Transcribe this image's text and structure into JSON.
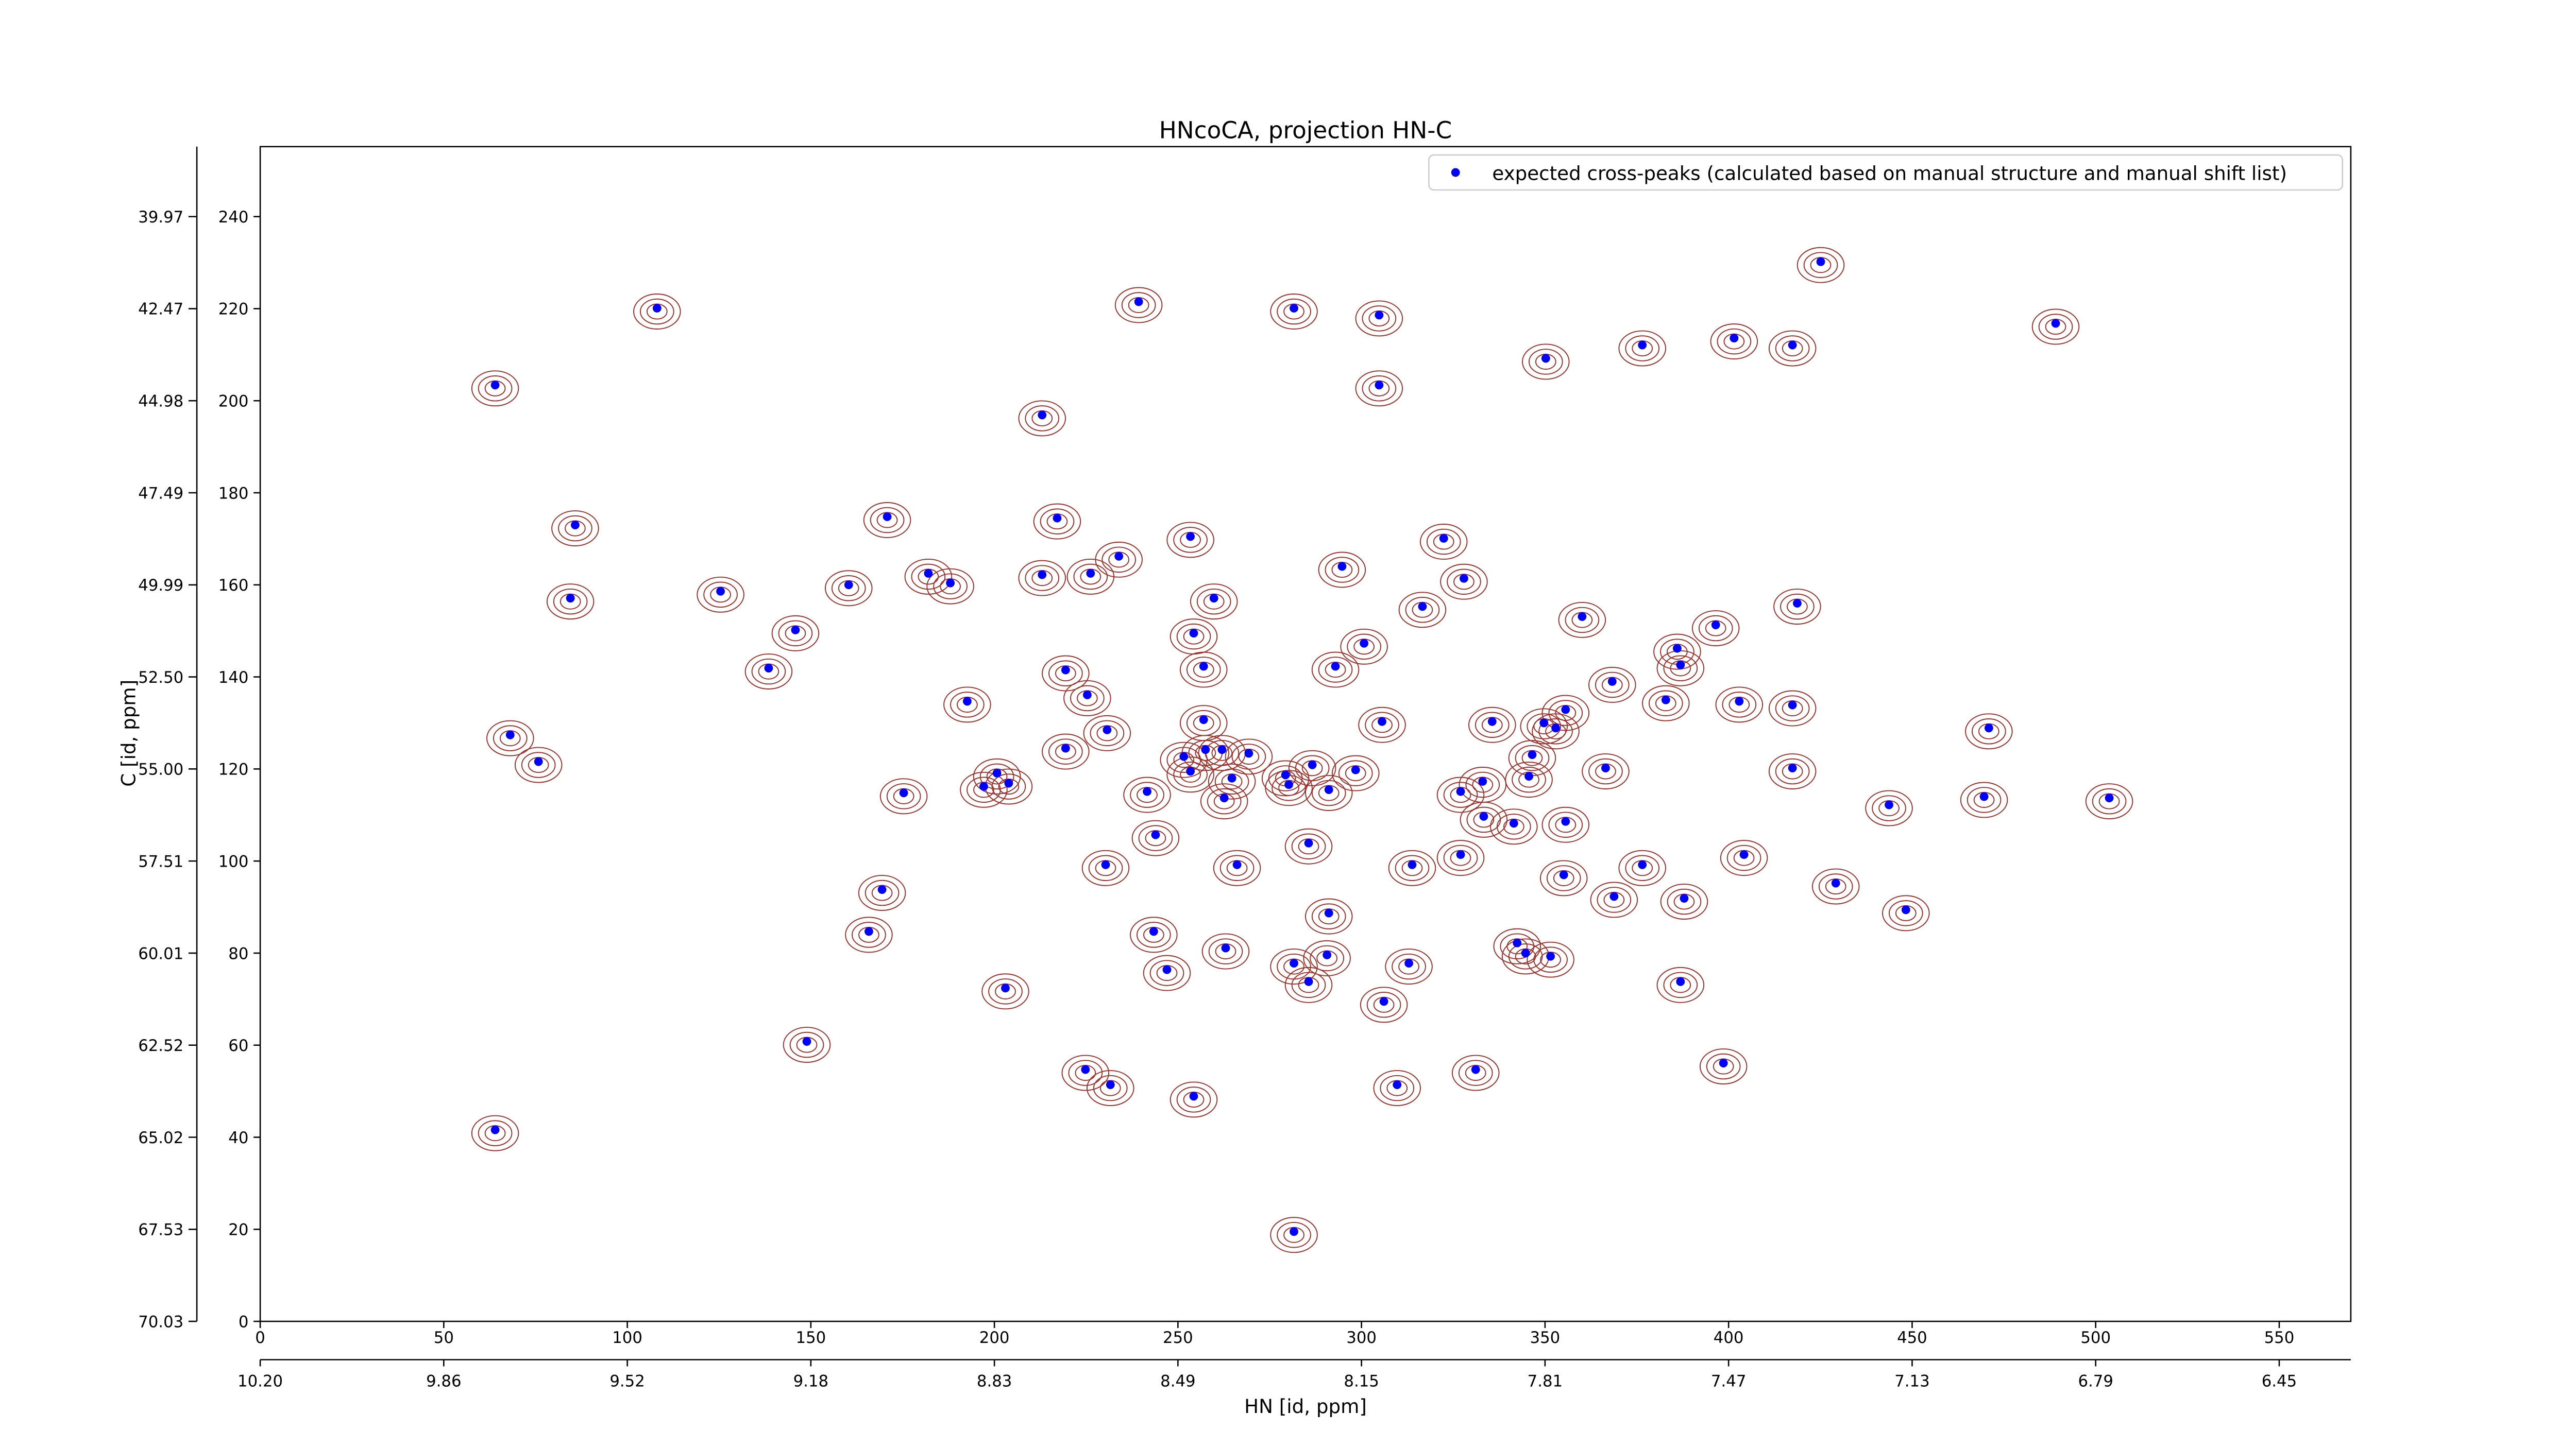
{
  "chart_data": {
    "type": "scatter",
    "title": "HNcoCA, projection HN-C",
    "x_label": "HN [id, ppm]",
    "y_label": "C [id, ppm]",
    "legend": "upper right",
    "x": [
      425.1,
      108.1,
      239.3,
      281.6,
      304.8,
      489.1,
      350.2,
      376.5,
      401.5,
      417.4,
      64.0,
      304.8,
      213.0,
      85.8,
      170.8,
      217.1,
      322.4,
      253.4,
      233.9,
      226.2,
      213.0,
      182.0,
      188.0,
      160.3,
      125.4,
      84.5,
      259.8,
      294.7,
      327.9,
      316.6,
      418.7,
      360.1,
      396.5,
      145.8,
      254.3,
      300.7,
      386.0,
      138.5,
      257.0,
      292.9,
      219.4,
      386.9,
      368.3,
      225.3,
      257.0,
      192.6,
      382.9,
      402.9,
      417.4,
      305.6,
      335.6,
      355.6,
      349.7,
      352.9,
      230.7,
      470.9,
      219.4,
      251.6,
      257.5,
      262.0,
      269.3,
      346.5,
      366.5,
      417.4,
      68.1,
      75.8,
      286.6,
      298.4,
      253.4,
      200.7,
      279.3,
      264.7,
      203.9,
      197.1,
      333.0,
      345.6,
      280.2,
      291.1,
      327.0,
      175.3,
      241.6,
      262.6,
      443.7,
      469.6,
      503.7,
      333.3,
      341.5,
      355.6,
      243.9,
      285.6,
      327.0,
      404.2,
      230.3,
      266.1,
      313.8,
      355.1,
      376.5,
      169.4,
      429.2,
      368.8,
      387.9,
      448.3,
      291.1,
      165.8,
      243.4,
      342.4,
      263.0,
      290.6,
      344.7,
      351.5,
      281.6,
      312.9,
      247.0,
      285.6,
      386.9,
      203.0,
      306.1,
      148.9,
      224.8,
      398.6,
      331.1,
      231.6,
      309.7,
      254.3,
      64.0,
      281.6
    ],
    "series": [
      {
        "name": "expected cross-peaks (calculated based on manual structure and manual shift list)",
        "color": "#0000ff",
        "values": [
          230.2,
          220.1,
          221.5,
          220.1,
          218.6,
          216.8,
          209.2,
          212.1,
          213.6,
          212.1,
          203.4,
          203.4,
          196.9,
          173.0,
          174.8,
          174.5,
          170.1,
          170.5,
          166.2,
          162.5,
          162.2,
          162.5,
          160.4,
          160.0,
          158.6,
          157.1,
          157.1,
          164.0,
          161.4,
          155.3,
          156.0,
          153.1,
          151.3,
          150.2,
          149.5,
          147.3,
          146.2,
          141.9,
          142.3,
          142.3,
          141.5,
          142.6,
          139.0,
          136.1,
          130.7,
          134.7,
          135.0,
          134.7,
          133.9,
          130.3,
          130.3,
          132.9,
          130.0,
          128.9,
          128.5,
          128.9,
          124.5,
          122.7,
          124.2,
          124.2,
          123.4,
          123.1,
          120.2,
          120.2,
          127.4,
          121.6,
          120.9,
          119.8,
          119.5,
          119.1,
          118.7,
          118.0,
          116.9,
          116.2,
          117.3,
          118.4,
          116.6,
          115.5,
          115.1,
          114.8,
          115.1,
          113.7,
          112.2,
          114.0,
          113.7,
          109.7,
          108.2,
          108.6,
          105.7,
          103.9,
          101.4,
          101.4,
          99.2,
          99.2,
          99.2,
          97.0,
          99.2,
          93.8,
          95.2,
          92.3,
          91.9,
          89.4,
          88.7,
          84.7,
          84.7,
          82.2,
          81.1,
          79.6,
          80.0,
          79.3,
          77.8,
          77.8,
          76.4,
          73.8,
          73.8,
          72.4,
          69.5,
          60.8,
          54.7,
          56.1,
          54.7,
          51.4,
          51.4,
          48.9,
          41.6,
          19.5
        ]
      }
    ],
    "contour_color": "#a0302a",
    "xlim": [
      0,
      569.5
    ],
    "ylim": [
      0,
      255.2
    ],
    "xticks": [
      0,
      50,
      100,
      150,
      200,
      250,
      300,
      350,
      400,
      450,
      500,
      550
    ],
    "x2ticks": [
      {
        "value": 0,
        "label": "10.20"
      },
      {
        "value": 50,
        "label": "9.86"
      },
      {
        "value": 100,
        "label": "9.52"
      },
      {
        "value": 150,
        "label": "9.18"
      },
      {
        "value": 200,
        "label": "8.83"
      },
      {
        "value": 250,
        "label": "8.49"
      },
      {
        "value": 300,
        "label": "8.15"
      },
      {
        "value": 350,
        "label": "7.81"
      },
      {
        "value": 400,
        "label": "7.47"
      },
      {
        "value": 450,
        "label": "7.13"
      },
      {
        "value": 500,
        "label": "6.79"
      },
      {
        "value": 550,
        "label": "6.45"
      }
    ],
    "yticks": [
      0,
      20,
      40,
      60,
      80,
      100,
      120,
      140,
      160,
      180,
      200,
      220,
      240
    ],
    "y2ticks": [
      {
        "value": 0,
        "label": "70.03"
      },
      {
        "value": 20,
        "label": "67.53"
      },
      {
        "value": 40,
        "label": "65.02"
      },
      {
        "value": 60,
        "label": "62.52"
      },
      {
        "value": 80,
        "label": "60.01"
      },
      {
        "value": 100,
        "label": "57.51"
      },
      {
        "value": 120,
        "label": "55.00"
      },
      {
        "value": 140,
        "label": "52.50"
      },
      {
        "value": 160,
        "label": "49.99"
      },
      {
        "value": 180,
        "label": "47.49"
      },
      {
        "value": 200,
        "label": "44.98"
      },
      {
        "value": 220,
        "label": "42.47"
      },
      {
        "value": 240,
        "label": "39.97"
      }
    ]
  }
}
